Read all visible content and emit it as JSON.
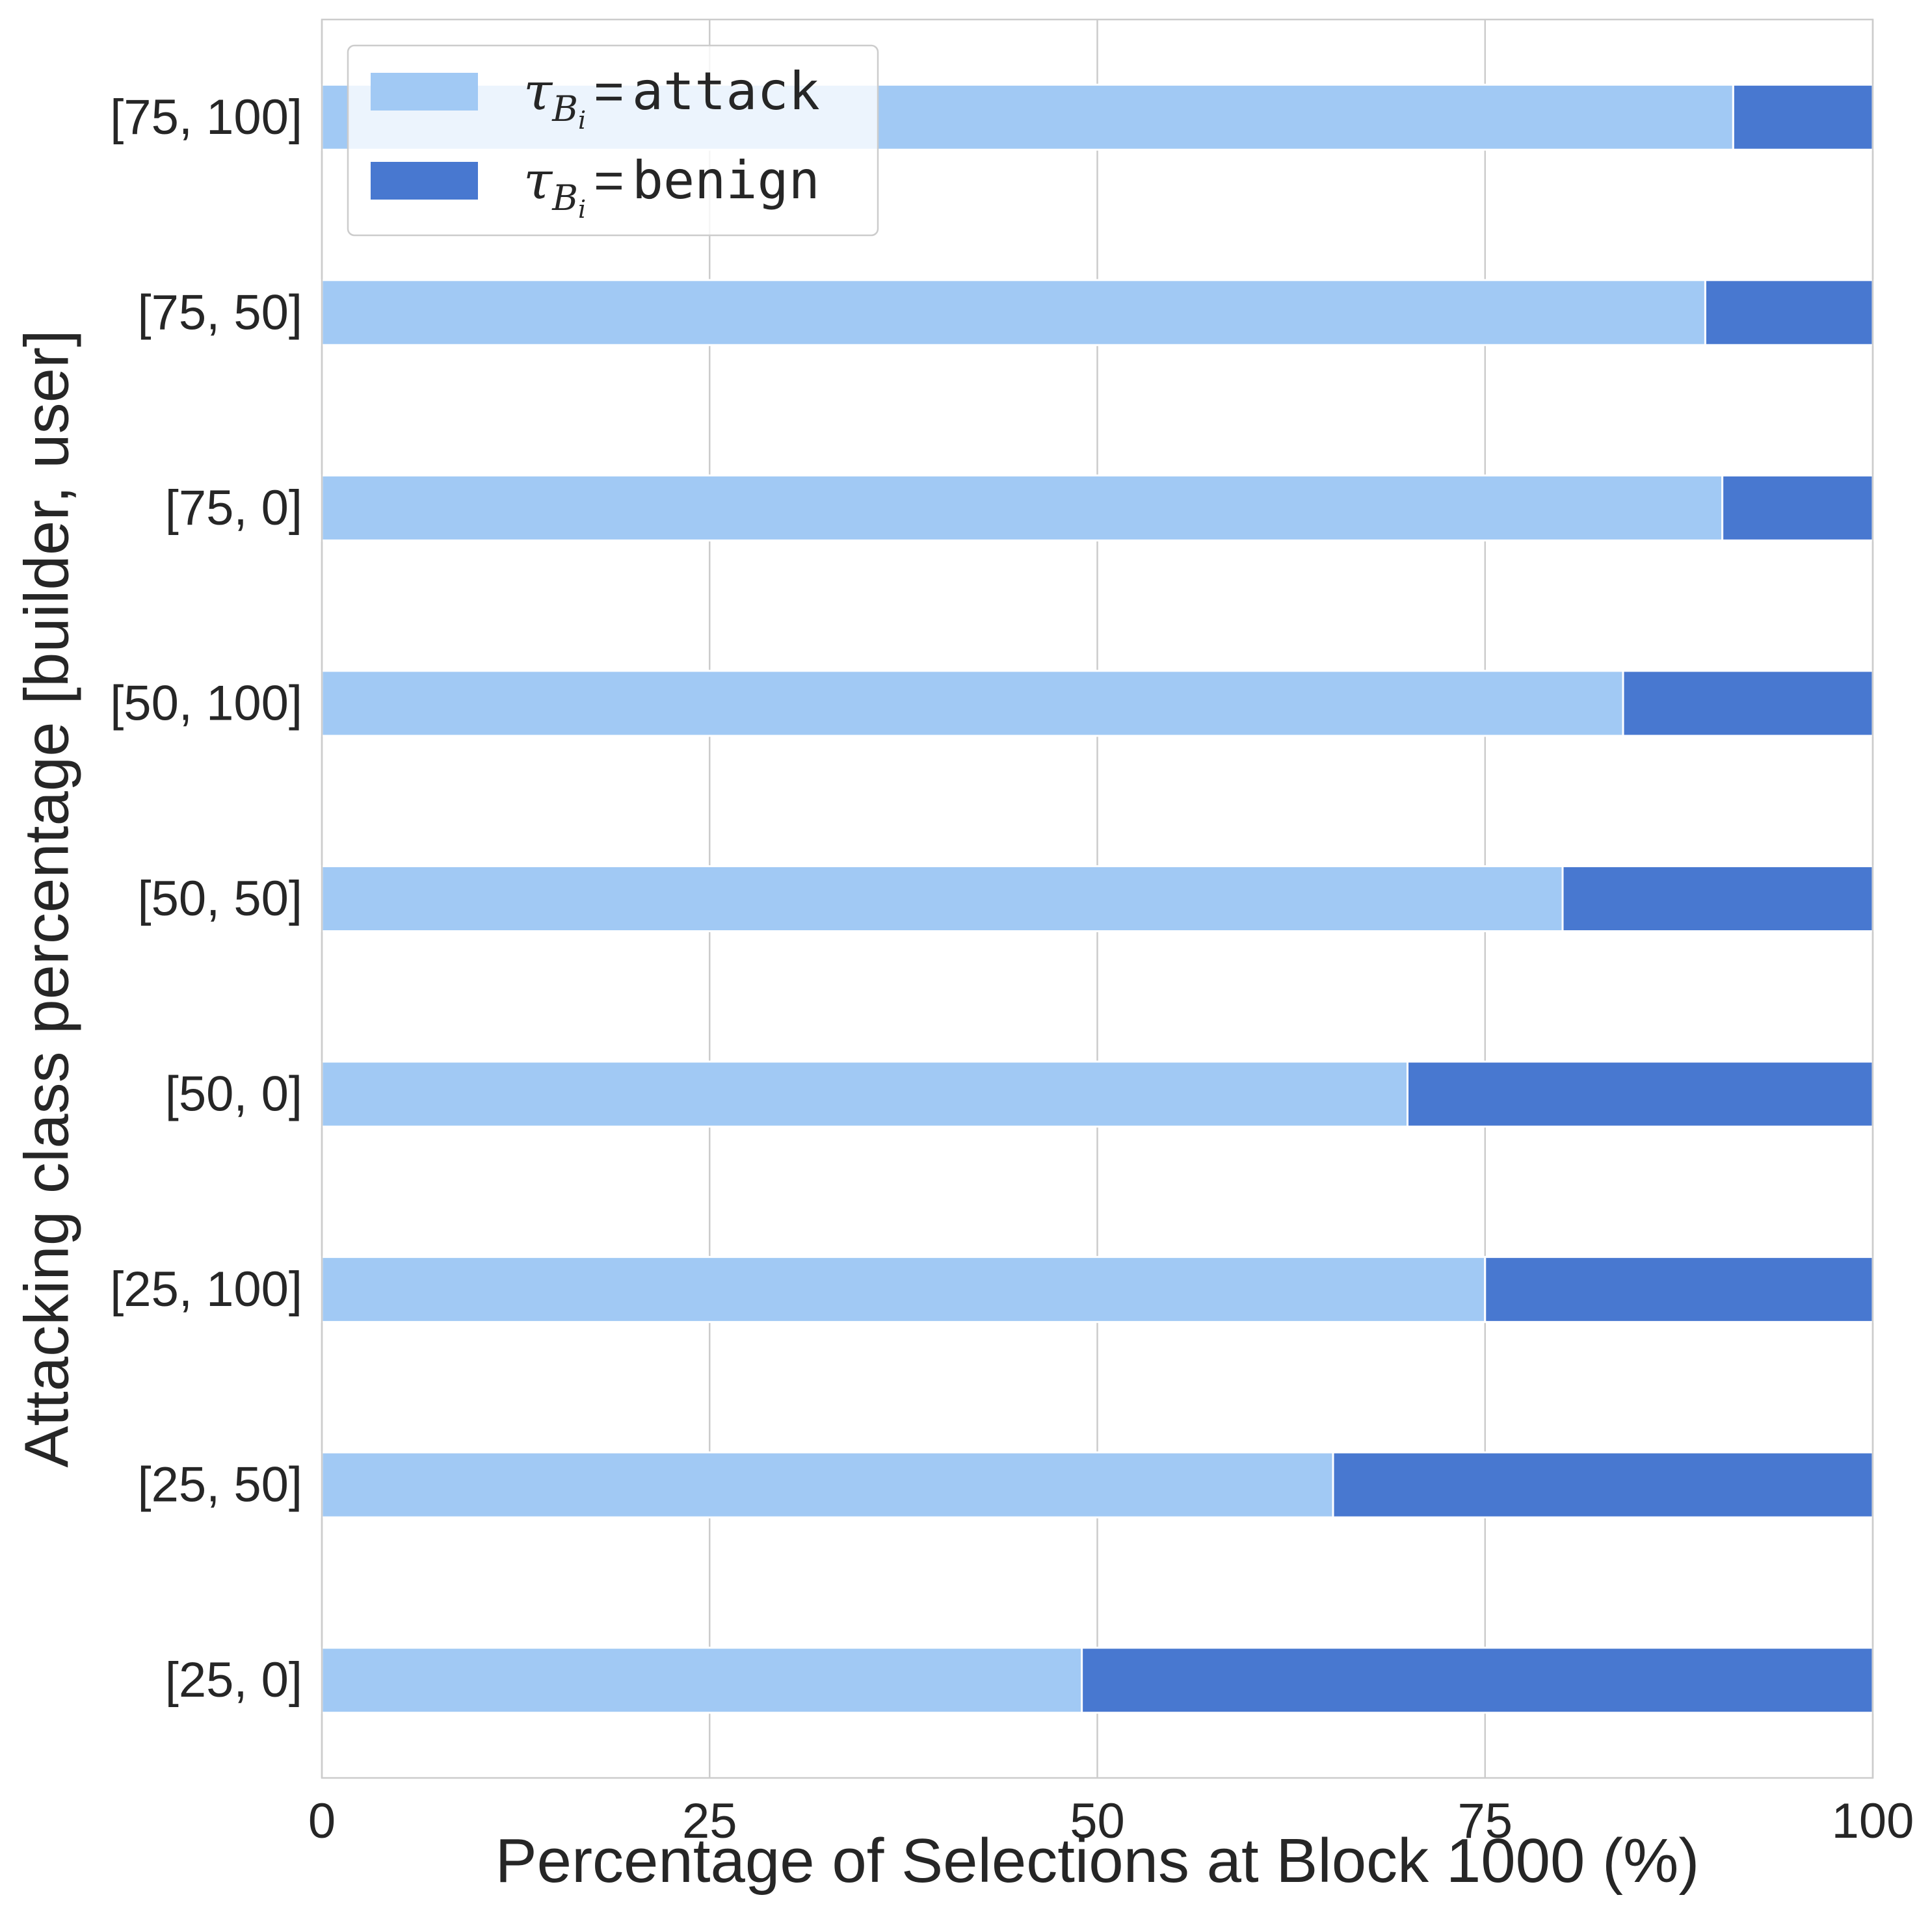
{
  "chart_data": {
    "type": "bar",
    "orientation": "horizontal",
    "stacked": true,
    "categories": [
      "[75, 100]",
      "[75, 50]",
      "[75, 0]",
      "[50, 100]",
      "[50, 50]",
      "[50, 0]",
      "[25, 100]",
      "[25, 50]",
      "[25, 0]"
    ],
    "series": [
      {
        "name": "attack",
        "color": "#a1c9f4",
        "values": [
          91,
          89.2,
          90.3,
          83.9,
          80,
          70,
          75,
          65.2,
          49
        ]
      },
      {
        "name": "benign",
        "color": "#4878d0",
        "values": [
          9,
          10.8,
          9.7,
          16.1,
          20,
          30,
          25,
          34.8,
          51
        ]
      }
    ],
    "xlabel": "Percentage of Selections at Block 1000 (%)",
    "ylabel": "Attacking class percentage [builder, user]",
    "xlim": [
      0,
      100
    ],
    "xticks": [
      0,
      25,
      50,
      75,
      100
    ],
    "grid": "vertical",
    "legend": {
      "placement": "top-left",
      "entries": [
        {
          "symbol": "τ",
          "sub": "B",
          "subsub": "i",
          "eq": "=",
          "value": "attack"
        },
        {
          "symbol": "τ",
          "sub": "B",
          "subsub": "i",
          "eq": "=",
          "value": "benign"
        }
      ]
    },
    "colors": {
      "axis": "#cccccc",
      "grid": "#cccccc",
      "text": "#262626",
      "bar_edge": "#ffffff"
    }
  }
}
